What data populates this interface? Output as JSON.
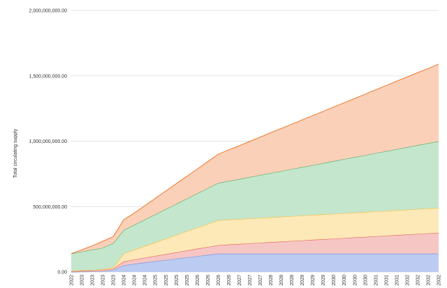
{
  "chart_data": {
    "type": "stacked-area",
    "y_label": "Total circulating supply",
    "categories": [
      "2022",
      "2023",
      "2023",
      "2023",
      "2023",
      "2024",
      "2024",
      "2024",
      "2025",
      "2025",
      "2025",
      "2025",
      "2026",
      "2026",
      "2026",
      "2026",
      "2027",
      "2027",
      "2027",
      "2028",
      "2028",
      "2028",
      "2029",
      "2029",
      "2029",
      "2030",
      "2030",
      "2030",
      "2030",
      "2031",
      "2031",
      "2031",
      "2032",
      "2032",
      "2032",
      "2032"
    ],
    "ylim": [
      0,
      2000000000
    ],
    "yticks": [
      {
        "value": 0,
        "label": "0.00"
      },
      {
        "value": 500000000,
        "label": "500,000,000.00"
      },
      {
        "value": 1000000000,
        "label": "1,000,000,000.00"
      },
      {
        "value": 1500000000,
        "label": "1,500,000,000.00"
      },
      {
        "value": 2000000000,
        "label": "2,000,000,000.00"
      }
    ],
    "grid": true,
    "series": [
      {
        "color": "#6d8fe0",
        "fill": "#bccbf2",
        "values": [
          0,
          2000000.0,
          3000000.0,
          5000000.0,
          15000000.0,
          50000000.0,
          62000000.0,
          72000000.0,
          82000000.0,
          91000000.0,
          101000000.0,
          111000000.0,
          121000000.0,
          130000000.0,
          140000000.0,
          140000000.0,
          140000000.0,
          140000000.0,
          140000000.0,
          140000000.0,
          140000000.0,
          140000000.0,
          140000000.0,
          140000000.0,
          140000000.0,
          140000000.0,
          140000000.0,
          140000000.0,
          140000000.0,
          140000000.0,
          140000000.0,
          140000000.0,
          140000000.0,
          140000000.0,
          140000000.0,
          140000000.0
        ]
      },
      {
        "color": "#e35d4f",
        "fill": "#f6c6c4",
        "values": [
          5000000.0,
          6000000.0,
          8000000.0,
          10000000.0,
          10000000.0,
          30000000.0,
          33000000.0,
          37000000.0,
          41000000.0,
          45000000.0,
          49000000.0,
          53000000.0,
          57000000.0,
          61000000.0,
          65000000.0,
          70000000.0,
          74000000.0,
          79000000.0,
          83000000.0,
          88000000.0,
          92000000.0,
          97000000.0,
          101000000.0,
          106000000.0,
          110000000.0,
          115000000.0,
          119000000.0,
          124000000.0,
          128000000.0,
          133000000.0,
          137000000.0,
          142000000.0,
          146000000.0,
          151000000.0,
          155000000.0,
          160000000.0
        ]
      },
      {
        "color": "#f2c037",
        "fill": "#fde8b8",
        "values": [
          3000000.0,
          4000000.0,
          4000000.0,
          5000000.0,
          10000000.0,
          60000000.0,
          75000000.0,
          89000000.0,
          103000000.0,
          118000000.0,
          133000000.0,
          147000000.0,
          161000000.0,
          176000000.0,
          190000000.0,
          190000000.0,
          190000000.0,
          190000000.0,
          190000000.0,
          190000000.0,
          190000000.0,
          190000000.0,
          190000000.0,
          190000000.0,
          190000000.0,
          190000000.0,
          190000000.0,
          190000000.0,
          190000000.0,
          190000000.0,
          190000000.0,
          190000000.0,
          190000000.0,
          190000000.0,
          190000000.0,
          190000000.0
        ]
      },
      {
        "color": "#4fa860",
        "fill": "#c4e6cd",
        "values": [
          132000000.0,
          143000000.0,
          155000000.0,
          165000000.0,
          185000000.0,
          180000000.0,
          190000000.0,
          202000000.0,
          214000000.0,
          226000000.0,
          237000000.0,
          249000000.0,
          261000000.0,
          273000000.0,
          285000000.0,
          296000000.0,
          306000000.0,
          317000000.0,
          328000000.0,
          339000000.0,
          349000000.0,
          360000000.0,
          371000000.0,
          381000000.0,
          392000000.0,
          403000000.0,
          414000000.0,
          424000000.0,
          435000000.0,
          446000000.0,
          457000000.0,
          467000000.0,
          478000000.0,
          489000000.0,
          499000000.0,
          510000000.0
        ]
      },
      {
        "color": "#ee8844",
        "fill": "#fbd0b9",
        "values": [
          0,
          15000000.0,
          30000000.0,
          50000000.0,
          50000000.0,
          80000000.0,
          90000000.0,
          106000000.0,
          122000000.0,
          139000000.0,
          155000000.0,
          171000000.0,
          187000000.0,
          204000000.0,
          220000000.0,
          238000000.0,
          255000000.0,
          273000000.0,
          290000000.0,
          308000000.0,
          326000000.0,
          343000000.0,
          361000000.0,
          379000000.0,
          396000000.0,
          414000000.0,
          431000000.0,
          449000000.0,
          467000000.0,
          484000000.0,
          502000000.0,
          520000000.0,
          537000000.0,
          555000000.0,
          572000000.0,
          590000000.0
        ]
      }
    ]
  }
}
